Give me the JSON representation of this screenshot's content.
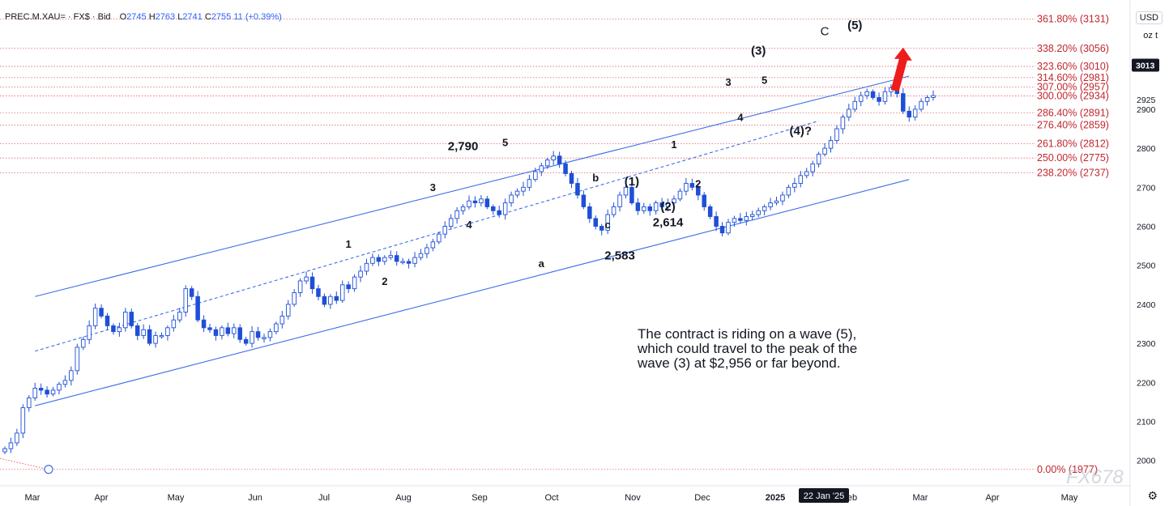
{
  "header": {
    "symbol": "PREC.M.XAU= · FX$ · Bid",
    "open_key": "O",
    "open": "2745",
    "high_key": "H",
    "high": "2763",
    "low_key": "L",
    "low": "2741",
    "close_key": "C",
    "close": "2755",
    "change": "11 (+0.39%)"
  },
  "controls": {
    "currency": "USD",
    "unit": "oz t"
  },
  "colors": {
    "up": "#ffffff",
    "down": "#1e4fd6",
    "wick": "#1e4fd6",
    "channel": "#3d6fe8",
    "fib": "#e0636a",
    "fib_text": "#c2262e",
    "arrow": "#ee1c1c",
    "axis_text": "#131722"
  },
  "chart_data": {
    "type": "candlestick",
    "y_range": [
      1935,
      3180
    ],
    "price_ticks": [
      2000,
      2100,
      2200,
      2300,
      2400,
      2500,
      2600,
      2700,
      2800,
      2900
    ],
    "price_tick_labels": [
      "2000",
      "2100",
      "2200",
      "2300",
      "2400",
      "2500",
      "2600",
      "2700",
      "2800",
      "2900"
    ],
    "price_label_extra": {
      "value": 2925,
      "label": "2925"
    },
    "last_price": {
      "value": 3013,
      "label": "3013"
    },
    "x_axis_months": [
      "Mar",
      "Apr",
      "May",
      "Jun",
      "Jul",
      "Aug",
      "Sep",
      "Oct",
      "Nov",
      "Dec",
      "2025",
      "Jan",
      "Feb",
      "Mar",
      "Apr",
      "May"
    ],
    "x_axis_visible_labels": [
      "Mar",
      "Apr",
      "May",
      "Jun",
      "Jul",
      "Aug",
      "Sep",
      "Oct",
      "Nov",
      "Dec",
      "2025",
      "eb",
      "Mar",
      "Apr",
      "May"
    ],
    "crosshair_date": "22 Jan '25",
    "closes": [
      2030,
      2045,
      2070,
      2135,
      2160,
      2185,
      2180,
      2170,
      2180,
      2195,
      2205,
      2230,
      2290,
      2310,
      2345,
      2390,
      2370,
      2345,
      2330,
      2340,
      2380,
      2345,
      2320,
      2335,
      2300,
      2320,
      2320,
      2340,
      2360,
      2380,
      2440,
      2420,
      2360,
      2340,
      2335,
      2320,
      2340,
      2325,
      2340,
      2310,
      2300,
      2330,
      2315,
      2315,
      2330,
      2350,
      2370,
      2400,
      2430,
      2460,
      2470,
      2440,
      2420,
      2400,
      2420,
      2410,
      2450,
      2440,
      2470,
      2485,
      2505,
      2520,
      2510,
      2520,
      2525,
      2510,
      2510,
      2505,
      2520,
      2530,
      2545,
      2560,
      2580,
      2600,
      2620,
      2640,
      2650,
      2665,
      2660,
      2670,
      2650,
      2640,
      2630,
      2660,
      2680,
      2690,
      2700,
      2720,
      2740,
      2755,
      2770,
      2780,
      2760,
      2735,
      2710,
      2680,
      2650,
      2620,
      2600,
      2590,
      2630,
      2650,
      2680,
      2700,
      2660,
      2640,
      2650,
      2640,
      2660,
      2650,
      2660,
      2670,
      2690,
      2710,
      2700,
      2680,
      2650,
      2625,
      2600,
      2583,
      2610,
      2620,
      2615,
      2625,
      2630,
      2640,
      2650,
      2660,
      2665,
      2680,
      2700,
      2710,
      2730,
      2740,
      2760,
      2785,
      2800,
      2820,
      2850,
      2880,
      2900,
      2920,
      2935,
      2945,
      2930,
      2920,
      2945,
      2955,
      2940,
      2895,
      2880,
      2900,
      2920,
      2930,
      2935
    ],
    "channel_upper": {
      "from": [
        5,
        2420
      ],
      "to": [
        150,
        2985
      ]
    },
    "channel_lower": {
      "from": [
        5,
        2140
      ],
      "to": [
        150,
        2720
      ]
    },
    "channel_mid": {
      "from": [
        5,
        2280
      ],
      "to": [
        135,
        2870
      ]
    },
    "fib_levels": [
      {
        "value": 3131,
        "label": "361.80% (3131)"
      },
      {
        "value": 3056,
        "label": "338.20% (3056)"
      },
      {
        "value": 3010,
        "label": "323.60% (3010)"
      },
      {
        "value": 2981,
        "label": "314.60% (2981)"
      },
      {
        "value": 2957,
        "label": "307.00% (2957)"
      },
      {
        "value": 2934,
        "label": "300.00% (2934)"
      },
      {
        "value": 2891,
        "label": "286.40% (2891)"
      },
      {
        "value": 2859,
        "label": "276.40% (2859)"
      },
      {
        "value": 2812,
        "label": "261.80% (2812)"
      },
      {
        "value": 2775,
        "label": "250.00% (2775)"
      },
      {
        "value": 2737,
        "label": "238.20% (2737)"
      },
      {
        "value": 1977,
        "label": "0.00% (1977)"
      }
    ],
    "wave_labels": [
      {
        "text": "1",
        "x": 57,
        "y": 2545
      },
      {
        "text": "2",
        "x": 63,
        "y": 2450
      },
      {
        "text": "3",
        "x": 71,
        "y": 2690
      },
      {
        "text": "4",
        "x": 77,
        "y": 2595
      },
      {
        "text": "5",
        "x": 83,
        "y": 2805
      },
      {
        "text": "2,790",
        "x": 76,
        "y": 2795
      },
      {
        "text": "a",
        "x": 89,
        "y": 2495
      },
      {
        "text": "b",
        "x": 98,
        "y": 2715
      },
      {
        "text": "c",
        "x": 100,
        "y": 2595
      },
      {
        "text": "2,583",
        "x": 102,
        "y": 2515
      },
      {
        "text": "(1)",
        "x": 104,
        "y": 2705
      },
      {
        "text": "(2)",
        "x": 110,
        "y": 2640
      },
      {
        "text": "2,614",
        "x": 110,
        "y": 2600
      },
      {
        "text": "1",
        "x": 111,
        "y": 2800
      },
      {
        "text": "2",
        "x": 115,
        "y": 2700
      },
      {
        "text": "3",
        "x": 120,
        "y": 2960
      },
      {
        "text": "4",
        "x": 122,
        "y": 2870
      },
      {
        "text": "5",
        "x": 126,
        "y": 2965
      },
      {
        "text": "(3)",
        "x": 125,
        "y": 3040
      },
      {
        "text": "(4)?",
        "x": 132,
        "y": 2835
      },
      {
        "text": "C",
        "x": 136,
        "y": 3090
      },
      {
        "text": "(5)",
        "x": 141,
        "y": 3105
      }
    ],
    "annotation": [
      "The contract is riding on a wave (5),",
      "which could travel to the peak of the",
      "wave (3) at $2,956 or far beyond."
    ],
    "watermark": "FX678"
  }
}
